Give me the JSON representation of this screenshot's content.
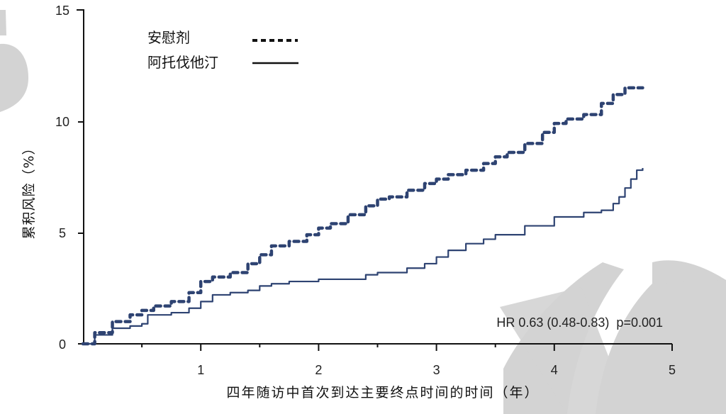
{
  "chart_data": {
    "type": "line",
    "title": "",
    "xlabel": "四年随访中首次到达主要终点时间的时间（年）",
    "ylabel": "累积风险（%）",
    "xlim": [
      0,
      5
    ],
    "ylim": [
      0,
      15
    ],
    "x_ticks": [
      1,
      2,
      3,
      4,
      5
    ],
    "x_minor_ticks": [
      0.5,
      1.5,
      2.5,
      3.5
    ],
    "y_ticks": [
      0,
      5,
      10,
      15
    ],
    "grid": false,
    "legend_position": "upper-left",
    "legend": [
      {
        "label": "安慰剂",
        "style": "dotted"
      },
      {
        "label": "阿托伐他汀",
        "style": "solid"
      }
    ],
    "annotation": "HR 0.63 (0.48-0.83)  p=0.001",
    "series": [
      {
        "name": "安慰剂",
        "style": "dotted",
        "color": "#2e4372",
        "x": [
          0,
          0.1,
          0.25,
          0.4,
          0.5,
          0.6,
          0.75,
          0.9,
          1.0,
          1.1,
          1.25,
          1.4,
          1.5,
          1.6,
          1.75,
          1.9,
          2.0,
          2.1,
          2.25,
          2.4,
          2.5,
          2.6,
          2.75,
          2.9,
          3.0,
          3.1,
          3.25,
          3.4,
          3.5,
          3.6,
          3.75,
          3.9,
          4.0,
          4.1,
          4.25,
          4.4,
          4.5,
          4.6,
          4.75
        ],
        "y": [
          0,
          0.5,
          1.0,
          1.3,
          1.5,
          1.7,
          1.9,
          2.3,
          2.8,
          3.0,
          3.2,
          3.6,
          4.0,
          4.4,
          4.6,
          4.9,
          5.2,
          5.4,
          5.8,
          6.2,
          6.5,
          6.6,
          6.9,
          7.2,
          7.4,
          7.6,
          7.8,
          8.1,
          8.4,
          8.6,
          9.0,
          9.5,
          9.9,
          10.1,
          10.3,
          10.8,
          11.2,
          11.5,
          11.5
        ]
      },
      {
        "name": "阿托伐他汀",
        "style": "solid",
        "color": "#2e4372",
        "x": [
          0,
          0.1,
          0.25,
          0.4,
          0.5,
          0.55,
          0.75,
          0.9,
          1.0,
          1.1,
          1.25,
          1.4,
          1.5,
          1.6,
          1.75,
          2.0,
          2.25,
          2.4,
          2.5,
          2.75,
          2.9,
          3.0,
          3.1,
          3.25,
          3.4,
          3.5,
          3.75,
          4.0,
          4.25,
          4.4,
          4.5,
          4.55,
          4.6,
          4.65,
          4.7,
          4.75
        ],
        "y": [
          0,
          0.4,
          0.7,
          0.8,
          0.9,
          1.3,
          1.4,
          1.6,
          1.9,
          2.2,
          2.3,
          2.4,
          2.6,
          2.7,
          2.8,
          2.9,
          2.9,
          3.1,
          3.2,
          3.4,
          3.6,
          3.9,
          4.2,
          4.5,
          4.7,
          4.9,
          5.3,
          5.7,
          5.9,
          6.0,
          6.3,
          6.6,
          7.0,
          7.4,
          7.8,
          7.9
        ]
      }
    ]
  },
  "style": {
    "line_color": "#2e4372",
    "axis_color": "#111111",
    "watermark_color": "#d3d3d3"
  }
}
